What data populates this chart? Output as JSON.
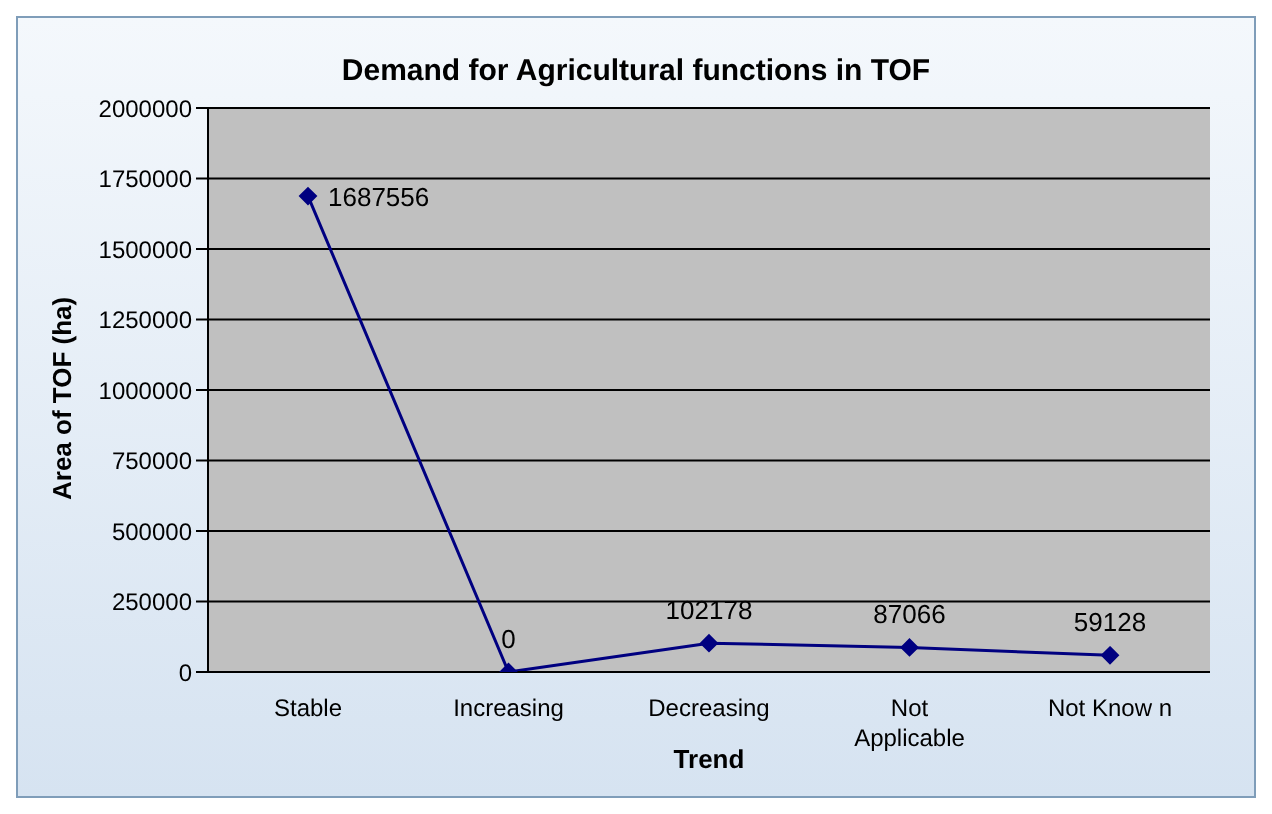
{
  "chart_data": {
    "type": "line",
    "title": "Demand for Agricultural functions in TOF",
    "xlabel": "Trend",
    "ylabel": "Area of TOF (ha)",
    "categories": [
      "Stable",
      "Increasing",
      "Decreasing",
      "Not Applicable",
      "Not Know n"
    ],
    "series": [
      {
        "color": "#000080",
        "values": [
          1687556,
          0,
          102178,
          87066,
          59128
        ]
      }
    ],
    "ylim": [
      0,
      2000000
    ],
    "yticks": [
      0,
      250000,
      500000,
      750000,
      1000000,
      1250000,
      1500000,
      1750000,
      2000000
    ],
    "grid": "y",
    "marker": "diamond",
    "line_style": "solid",
    "data_labels": true,
    "legend": false
  }
}
